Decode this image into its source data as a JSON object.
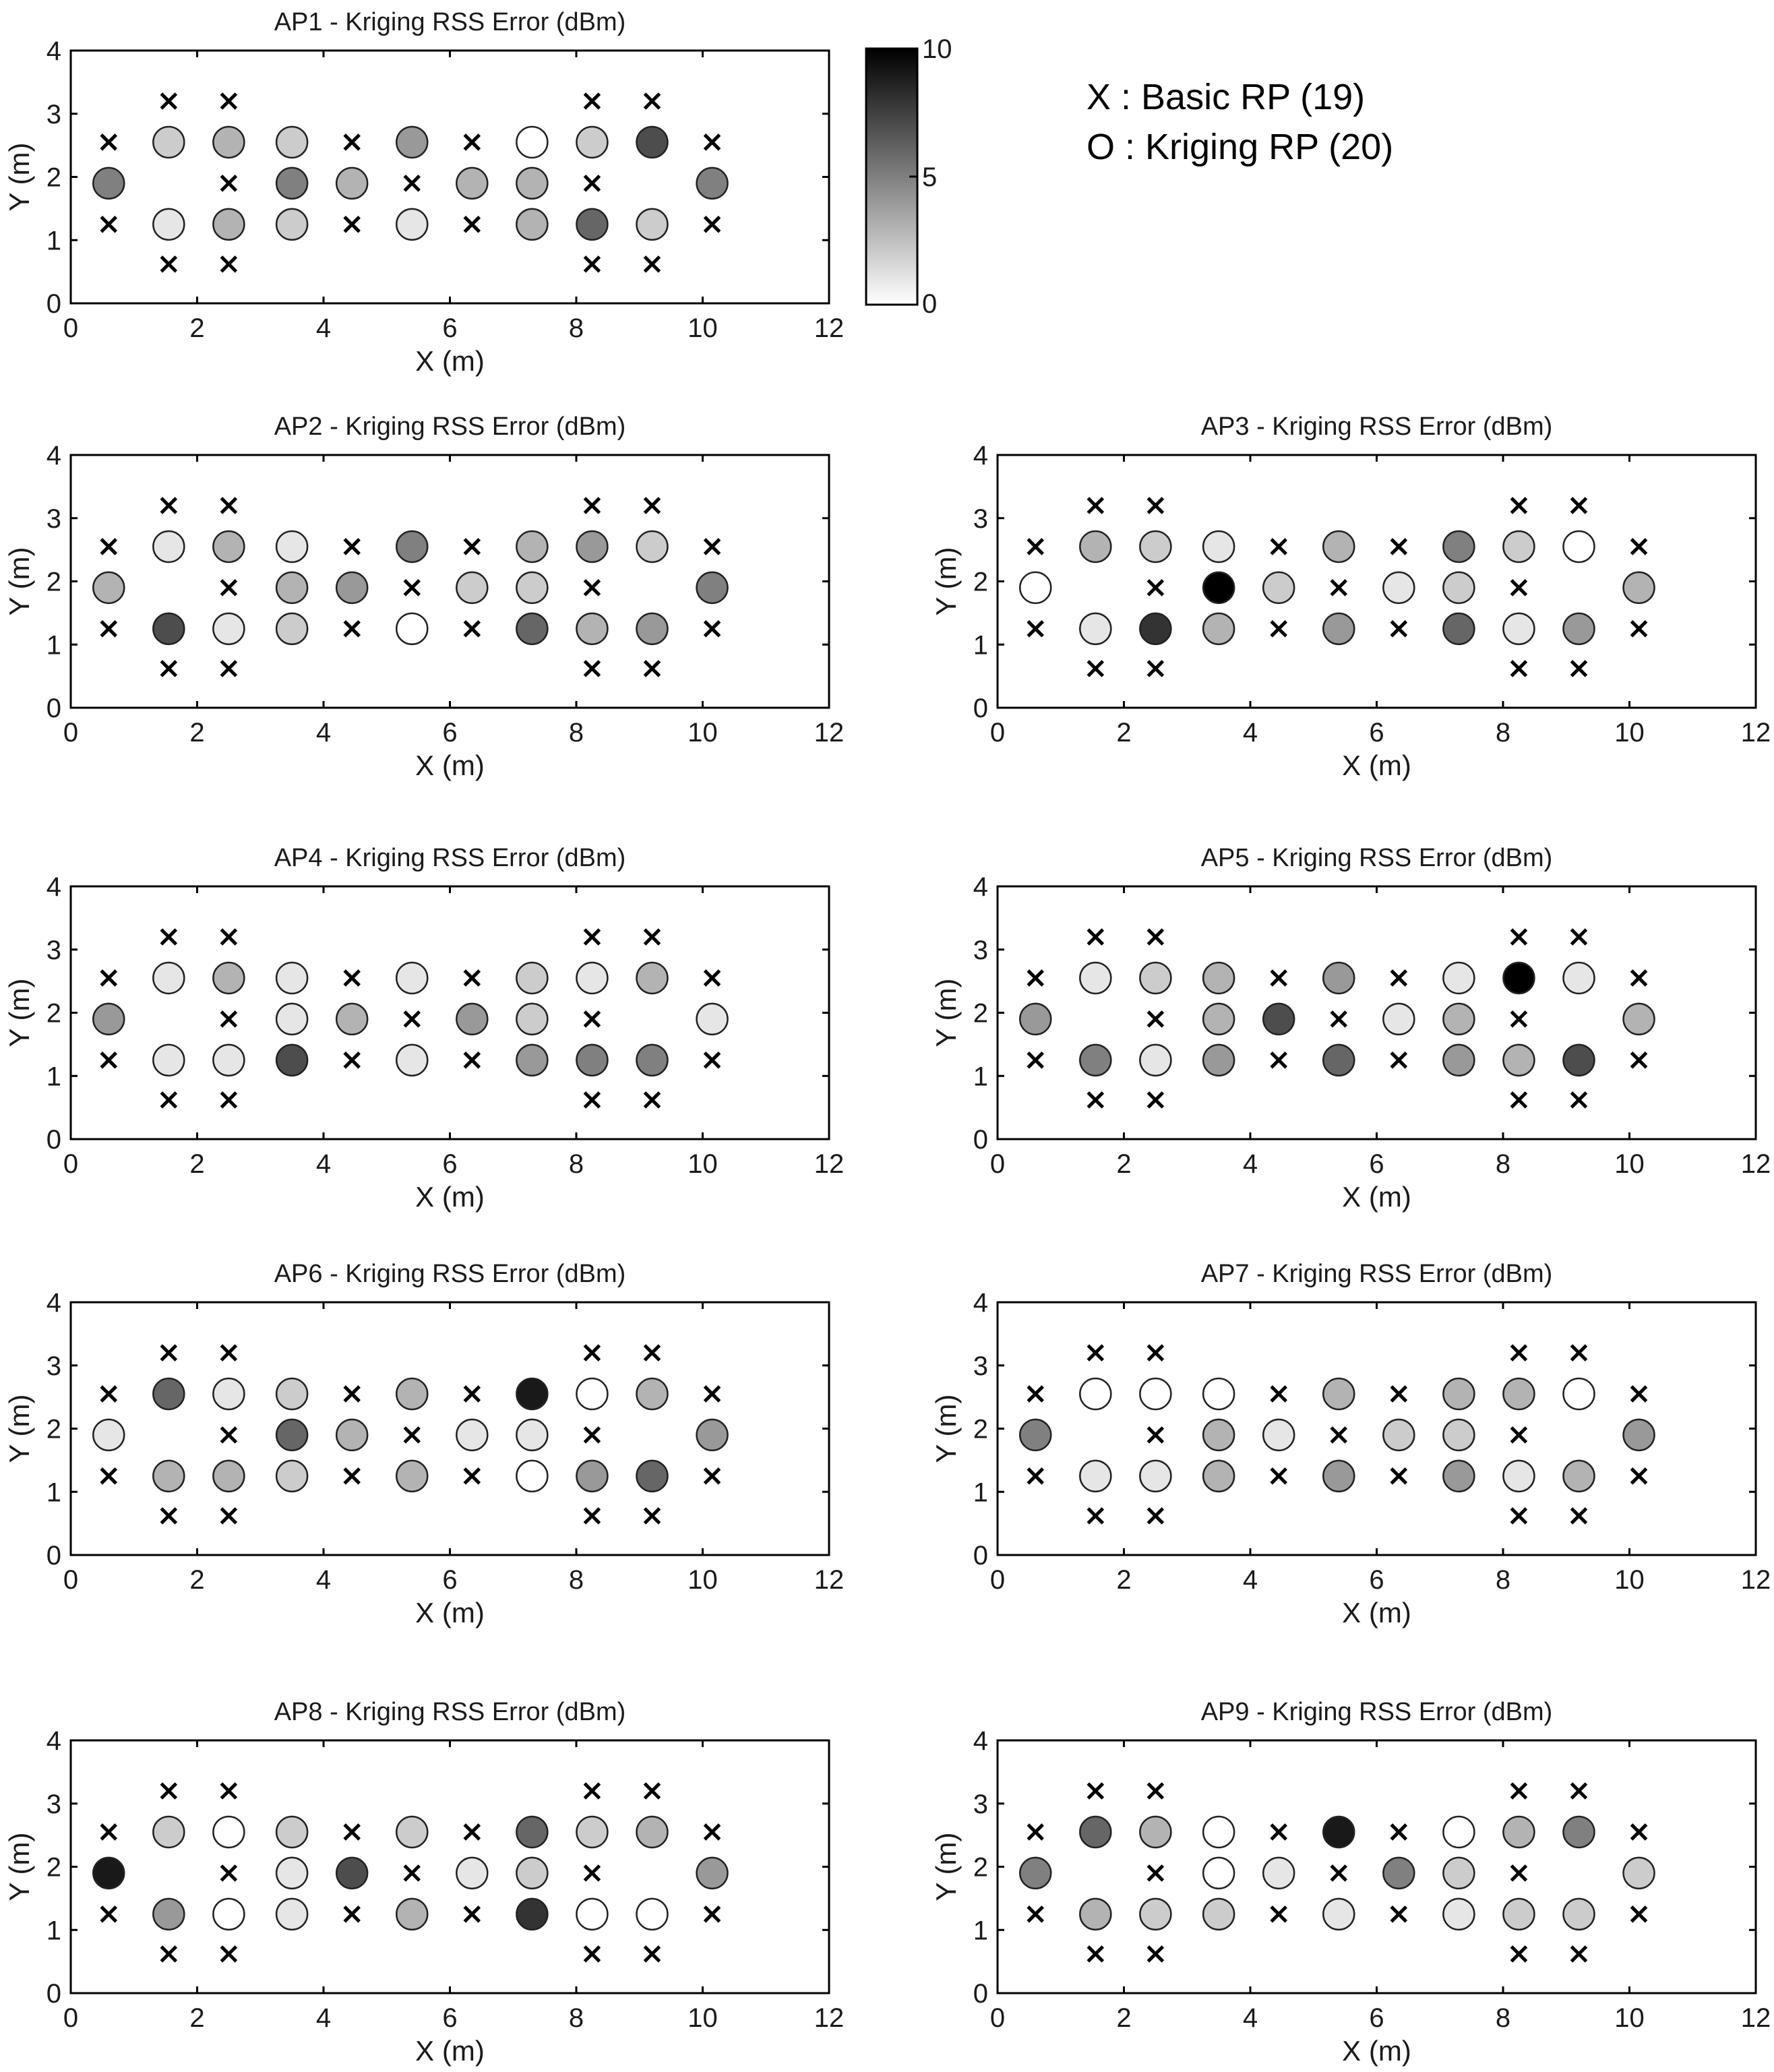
{
  "legend": {
    "basic": "X : Basic RP (19)",
    "kriging": "O : Kriging RP (20)"
  },
  "colorbar": {
    "max_label": "10",
    "mid_label": "5",
    "min_label": "0",
    "min": 0,
    "max": 10,
    "colormap": "gray-reversed",
    "low_color": "#ffffff",
    "high_color": "#000000"
  },
  "chart_data": {
    "type": "scatter",
    "xlabel": "X (m)",
    "ylabel": "Y (m)",
    "xlim": [
      0,
      12
    ],
    "ylim": [
      0,
      4
    ],
    "xticks": [
      "0",
      "2",
      "4",
      "6",
      "8",
      "10",
      "12"
    ],
    "yticks": [
      "0",
      "1",
      "2",
      "3",
      "4"
    ],
    "grid": false,
    "basic_rp": {
      "marker": "x",
      "points": [
        [
          0.6,
          2.55
        ],
        [
          0.6,
          1.25
        ],
        [
          1.55,
          3.2
        ],
        [
          1.55,
          0.62
        ],
        [
          2.5,
          3.2
        ],
        [
          2.5,
          1.9
        ],
        [
          2.5,
          0.62
        ],
        [
          4.45,
          2.55
        ],
        [
          4.45,
          1.25
        ],
        [
          5.4,
          1.9
        ],
        [
          6.35,
          2.55
        ],
        [
          6.35,
          1.25
        ],
        [
          8.25,
          3.2
        ],
        [
          8.25,
          1.9
        ],
        [
          8.25,
          0.62
        ],
        [
          9.2,
          3.2
        ],
        [
          9.2,
          0.62
        ],
        [
          10.15,
          2.55
        ],
        [
          10.15,
          1.25
        ]
      ]
    },
    "kriging_rp": {
      "marker": "o",
      "points": [
        [
          1.55,
          2.55
        ],
        [
          2.5,
          2.55
        ],
        [
          3.5,
          2.55
        ],
        [
          5.4,
          2.55
        ],
        [
          7.3,
          2.55
        ],
        [
          8.25,
          2.55
        ],
        [
          9.2,
          2.55
        ],
        [
          0.6,
          1.9
        ],
        [
          3.5,
          1.9
        ],
        [
          4.45,
          1.9
        ],
        [
          6.35,
          1.9
        ],
        [
          7.3,
          1.9
        ],
        [
          10.15,
          1.9
        ],
        [
          1.55,
          1.25
        ],
        [
          2.5,
          1.25
        ],
        [
          3.5,
          1.25
        ],
        [
          5.4,
          1.25
        ],
        [
          7.3,
          1.25
        ],
        [
          8.25,
          1.25
        ],
        [
          9.2,
          1.25
        ]
      ]
    },
    "panels": [
      {
        "title": "AP1 - Kriging RSS Error (dBm)",
        "errors": [
          2,
          3,
          2,
          4,
          0,
          2,
          7,
          5,
          5,
          3,
          3,
          3,
          5,
          1,
          3,
          2,
          1,
          3,
          6,
          2
        ]
      },
      {
        "title": "AP2 - Kriging RSS Error (dBm)",
        "errors": [
          1,
          3,
          1,
          5,
          3,
          4,
          2,
          3,
          3,
          4,
          2,
          2,
          5,
          7,
          1,
          2,
          0,
          6,
          3,
          4
        ]
      },
      {
        "title": "AP3 - Kriging RSS Error (dBm)",
        "errors": [
          3,
          2,
          1,
          3,
          5,
          2,
          0,
          0,
          10,
          2,
          1,
          2,
          3,
          1,
          8,
          3,
          4,
          6,
          1,
          4
        ]
      },
      {
        "title": "AP4 - Kriging RSS Error (dBm)",
        "errors": [
          1,
          3,
          1,
          1,
          2,
          1,
          3,
          4,
          1,
          3,
          4,
          2,
          1,
          1,
          1,
          7,
          1,
          4,
          5,
          5
        ]
      },
      {
        "title": "AP5 - Kriging RSS Error (dBm)",
        "errors": [
          1,
          2,
          3,
          4,
          1,
          10,
          1,
          4,
          3,
          7,
          1,
          3,
          3,
          5,
          1,
          4,
          6,
          4,
          3,
          7
        ]
      },
      {
        "title": "AP6 - Kriging RSS Error (dBm)",
        "errors": [
          6,
          1,
          2,
          3,
          9,
          0,
          3,
          1,
          6,
          3,
          1,
          1,
          4,
          3,
          3,
          2,
          3,
          0,
          4,
          6
        ]
      },
      {
        "title": "AP7 - Kriging RSS Error (dBm)",
        "errors": [
          0,
          0,
          0,
          3,
          3,
          3,
          0,
          5,
          3,
          1,
          2,
          2,
          4,
          1,
          1,
          3,
          4,
          4,
          1,
          3
        ]
      },
      {
        "title": "AP8 - Kriging RSS Error (dBm)",
        "errors": [
          2,
          0,
          2,
          2,
          6,
          2,
          3,
          9,
          1,
          7,
          1,
          2,
          4,
          4,
          0,
          1,
          3,
          8,
          0,
          0
        ]
      },
      {
        "title": "AP9 - Kriging RSS Error (dBm)",
        "errors": [
          6,
          3,
          0,
          9,
          0,
          3,
          5,
          5,
          0,
          1,
          5,
          2,
          2,
          3,
          2,
          2,
          1,
          1,
          2,
          2
        ]
      }
    ]
  }
}
